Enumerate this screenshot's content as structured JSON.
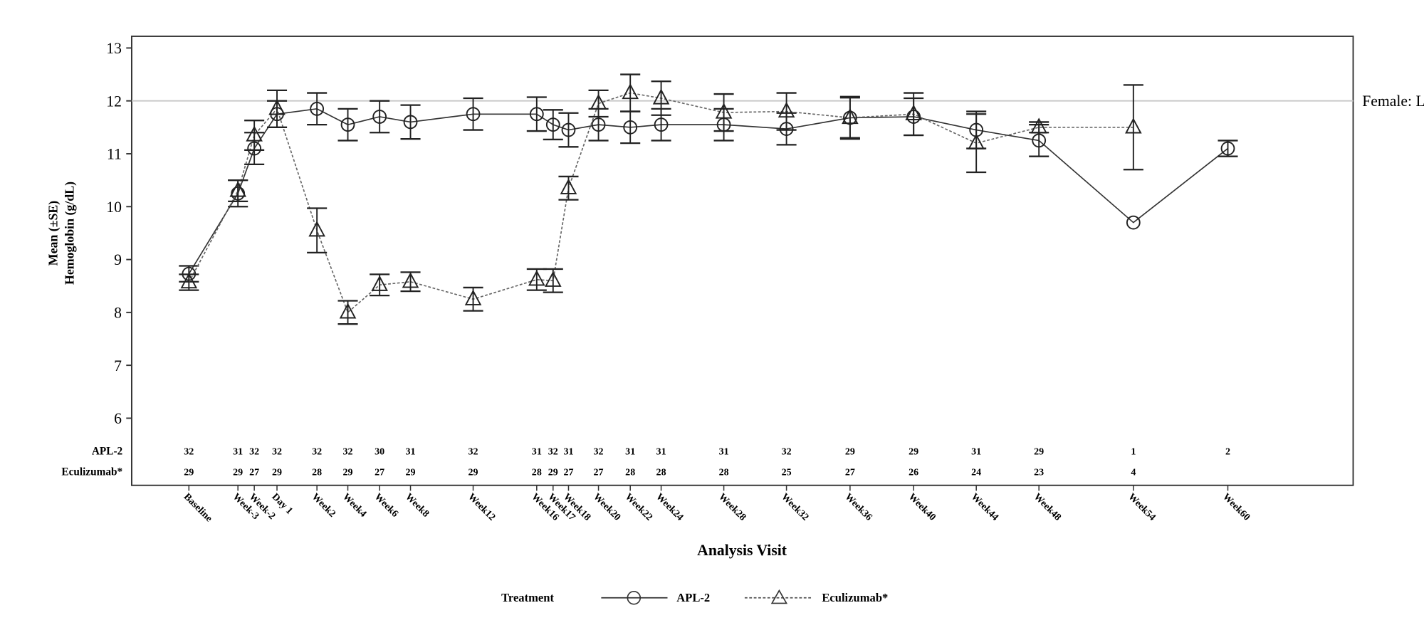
{
  "chart_data": {
    "type": "line",
    "xlabel": "Analysis Visit",
    "ylabel": [
      "Mean (±SE)",
      "Hemoglobin (g/dL)"
    ],
    "ylim": [
      6,
      13
    ],
    "yticks": [
      6,
      7,
      8,
      9,
      10,
      11,
      12,
      13
    ],
    "grid": false,
    "categories": [
      "Baseline",
      "Week-3",
      "Week-2",
      "Day 1",
      "Week2",
      "Week4",
      "Week6",
      "Week8",
      "Week12",
      "Week16",
      "Week17",
      "Week18",
      "Week20",
      "Week22",
      "Week24",
      "Week28",
      "Week32",
      "Week36",
      "Week40",
      "Week44",
      "Week48",
      "Week54",
      "Week60"
    ],
    "reference_line": {
      "value": 12,
      "label": "Female: LLN",
      "color": "#c8c8c8"
    },
    "series": [
      {
        "name": "APL-2",
        "marker": "circle",
        "line": "solid",
        "values": [
          8.73,
          10.25,
          11.1,
          11.75,
          11.85,
          11.55,
          11.7,
          11.6,
          11.75,
          11.75,
          11.55,
          11.45,
          11.55,
          11.5,
          11.55,
          11.55,
          11.47,
          11.68,
          11.7,
          11.45,
          11.25,
          9.7,
          11.1
        ],
        "se": [
          0.15,
          0.25,
          0.3,
          0.25,
          0.3,
          0.3,
          0.3,
          0.32,
          0.3,
          0.32,
          0.28,
          0.32,
          0.3,
          0.3,
          0.3,
          0.3,
          0.3,
          0.38,
          0.35,
          0.35,
          0.3,
          0,
          0.15
        ],
        "n": [
          "32",
          "31",
          "32",
          "32",
          "32",
          "32",
          "30",
          "31",
          "32",
          "31",
          "32",
          "31",
          "32",
          "31",
          "31",
          "31",
          "32",
          "29",
          "29",
          "31",
          "29",
          "1",
          "2"
        ]
      },
      {
        "name": "Eculizumab*",
        "marker": "triangle",
        "line": "dashed",
        "values": [
          8.57,
          10.3,
          11.35,
          11.85,
          9.55,
          8.0,
          8.52,
          8.58,
          8.25,
          8.62,
          8.6,
          10.35,
          11.95,
          12.15,
          12.05,
          11.78,
          11.8,
          11.68,
          11.75,
          11.2,
          11.5,
          11.5,
          null
        ],
        "se": [
          0.15,
          0.2,
          0.28,
          0.35,
          0.42,
          0.22,
          0.2,
          0.18,
          0.22,
          0.2,
          0.22,
          0.22,
          0.25,
          0.35,
          0.32,
          0.35,
          0.35,
          0.4,
          0.4,
          0.55,
          0.1,
          0.8,
          null
        ],
        "n": [
          "29",
          "29",
          "27",
          "29",
          "28",
          "29",
          "27",
          "29",
          "29",
          "28",
          "29",
          "27",
          "27",
          "28",
          "28",
          "28",
          "25",
          "27",
          "26",
          "24",
          "23",
          "4",
          ""
        ]
      }
    ],
    "legend": {
      "title": "Treatment",
      "placement": "bottom"
    }
  }
}
